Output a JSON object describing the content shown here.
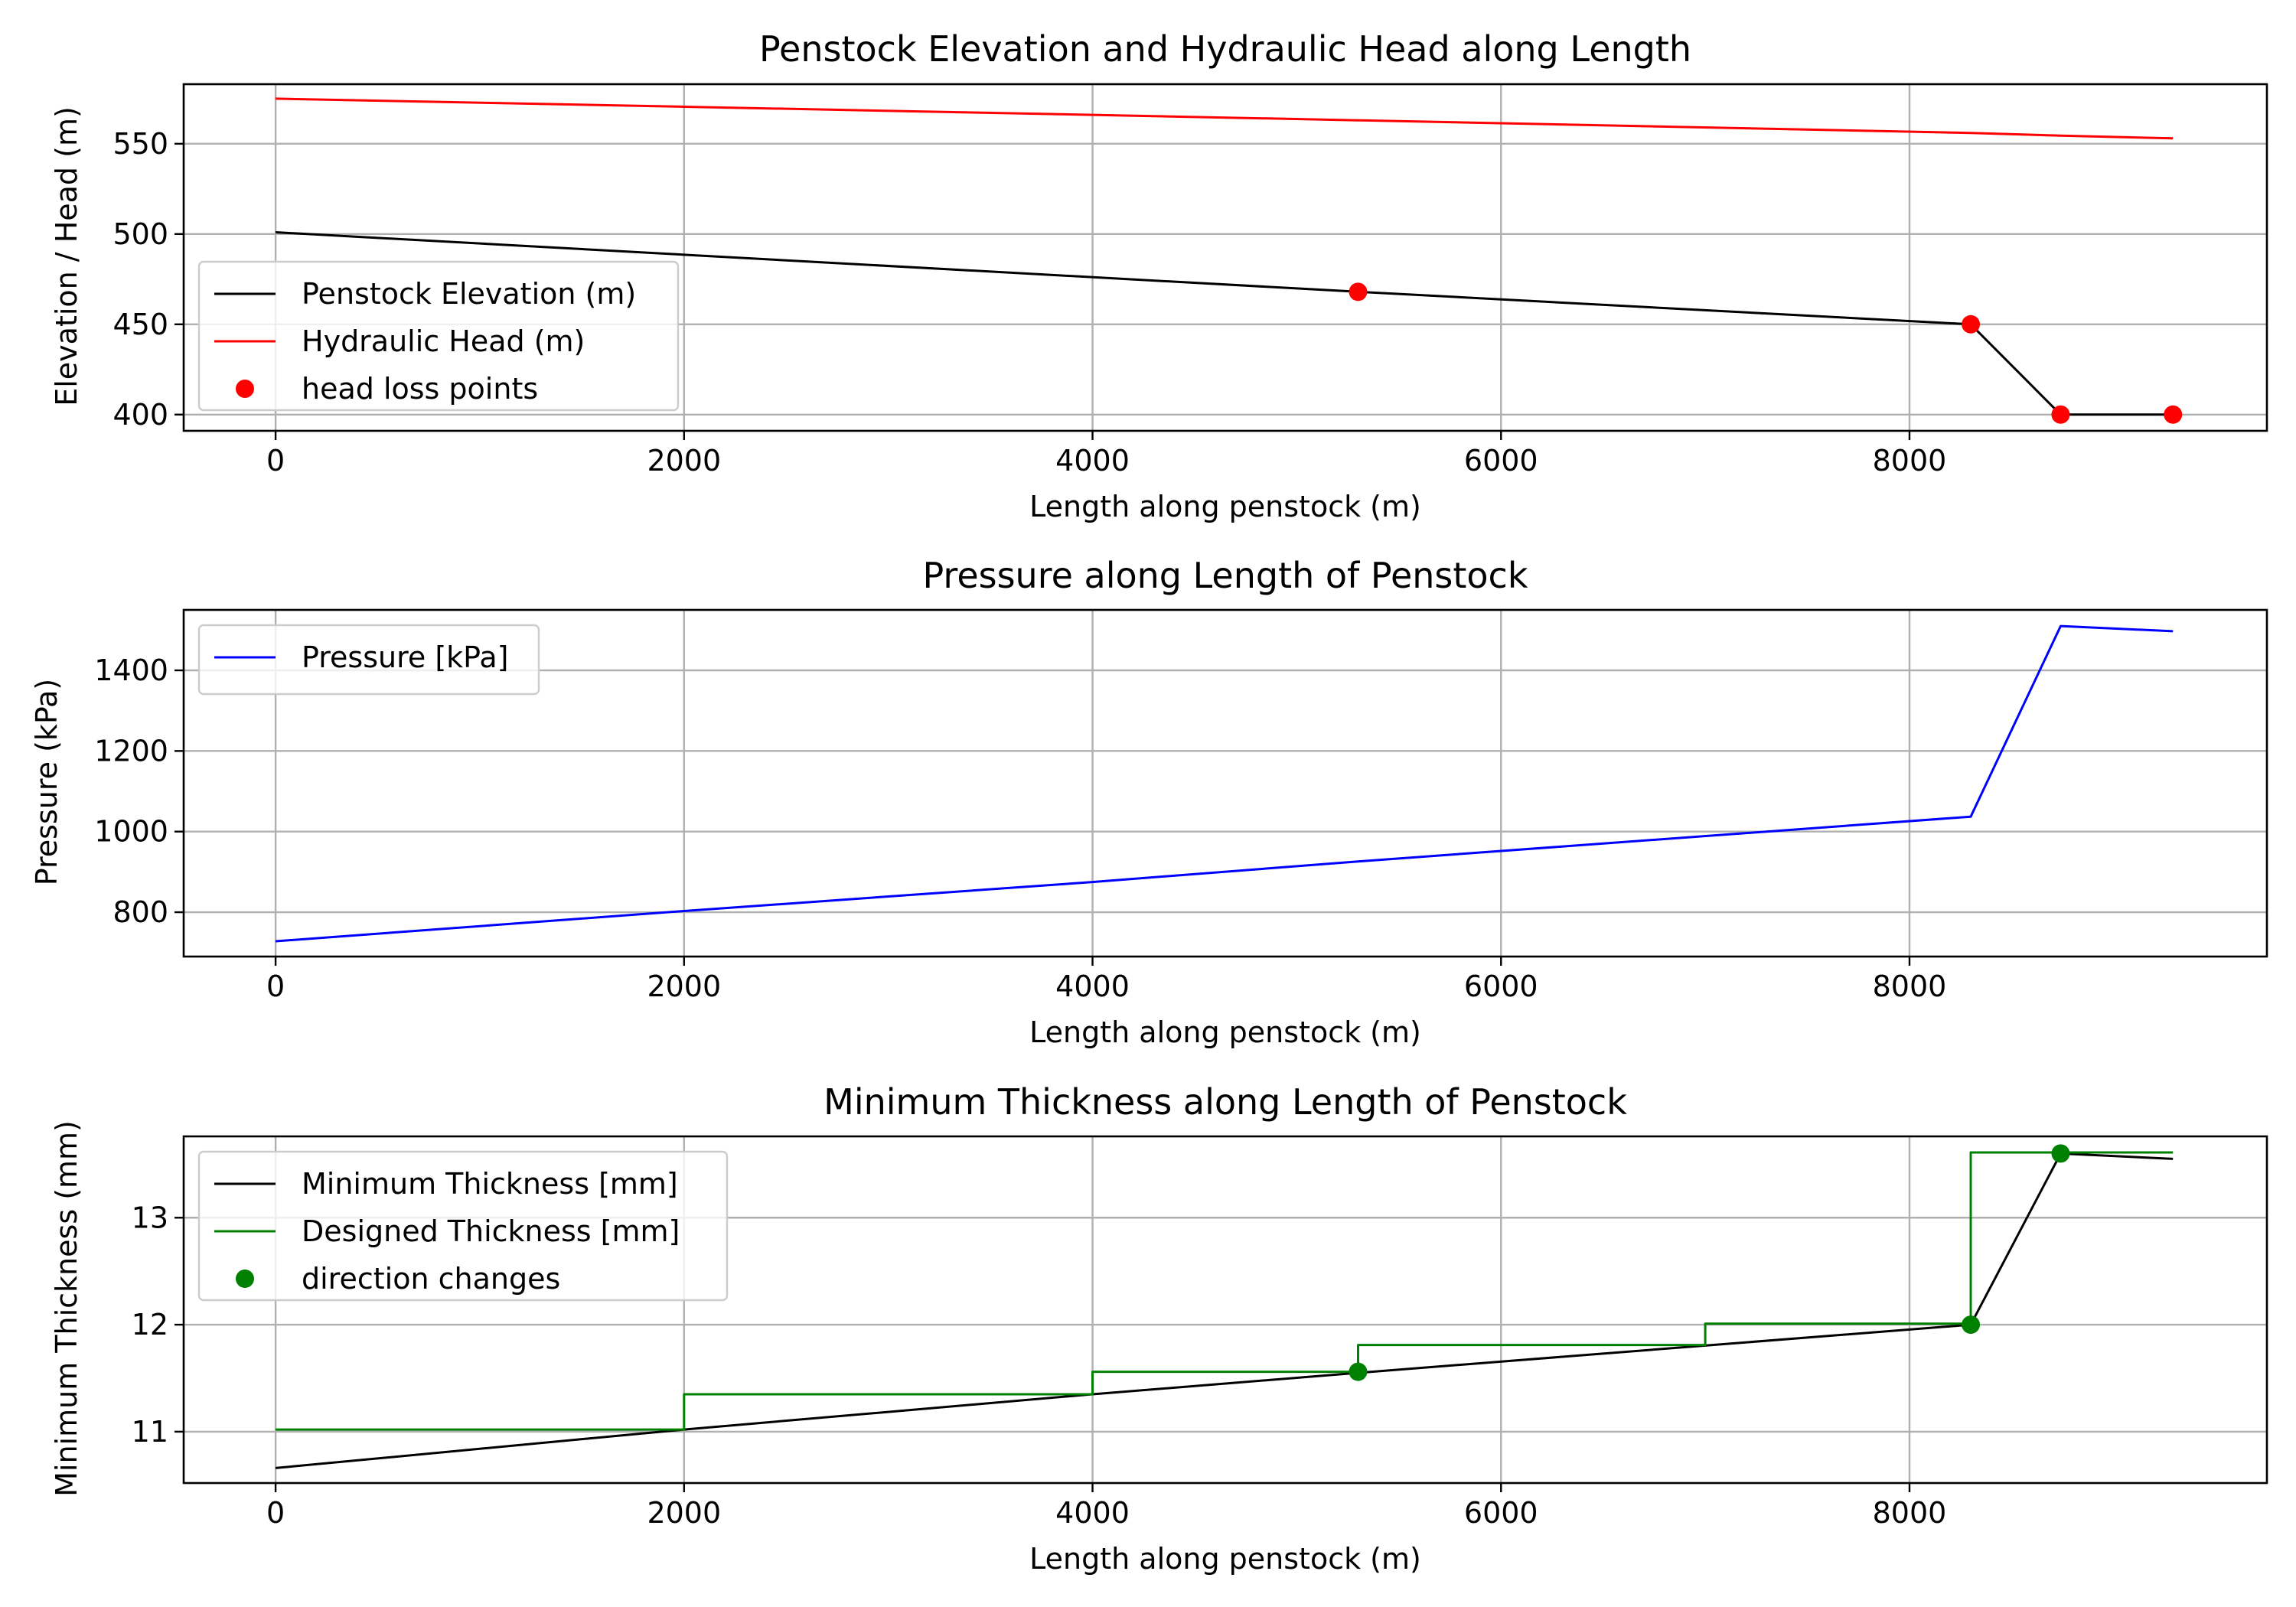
{
  "chart_data": [
    {
      "type": "line",
      "title": "Penstock Elevation and Hydraulic Head along Length",
      "xlabel": "Length along penstock (m)",
      "ylabel": "Elevation / Head (m)",
      "xlim": [
        -450,
        9750
      ],
      "ylim": [
        391,
        583
      ],
      "xticks": [
        0,
        2000,
        4000,
        6000,
        8000
      ],
      "yticks": [
        400,
        450,
        500,
        550
      ],
      "grid": true,
      "legend_position": "lower-left",
      "series": [
        {
          "name": "Penstock Elevation (m)",
          "kind": "line",
          "color": "#000000",
          "x": [
            0,
            5300,
            8300,
            8740,
            9290
          ],
          "y": [
            501,
            468,
            450,
            400,
            400
          ]
        },
        {
          "name": "Hydraulic Head (m)",
          "kind": "line",
          "color": "#ff0000",
          "x": [
            0,
            2000,
            4000,
            5300,
            8300,
            8740,
            9290
          ],
          "y": [
            575,
            570.5,
            566,
            563,
            556,
            554.5,
            553
          ]
        },
        {
          "name": "head loss points",
          "kind": "markers",
          "color": "#ff0000",
          "x": [
            5300,
            8300,
            8740,
            9290
          ],
          "y": [
            468,
            450,
            400,
            400
          ]
        }
      ]
    },
    {
      "type": "line",
      "title": "Pressure along Length of Penstock",
      "xlabel": "Length along penstock (m)",
      "ylabel": "Pressure (kPa)",
      "xlim": [
        -450,
        9750
      ],
      "ylim": [
        690,
        1550
      ],
      "xticks": [
        0,
        2000,
        4000,
        6000,
        8000
      ],
      "yticks": [
        800,
        1000,
        1200,
        1400
      ],
      "grid": true,
      "legend_position": "top-left",
      "series": [
        {
          "name": "Pressure [kPa]",
          "kind": "line",
          "color": "#0000ff",
          "x": [
            0,
            2000,
            4000,
            5300,
            8300,
            8740,
            9290
          ],
          "y": [
            728,
            803,
            875,
            926,
            1037,
            1510,
            1497
          ]
        }
      ]
    },
    {
      "type": "line",
      "title": "Minimum Thickness along Length of Penstock",
      "xlabel": "Length along penstock (m)",
      "ylabel": "Minimum Thickness (mm)",
      "xlim": [
        -450,
        9750
      ],
      "ylim": [
        10.52,
        13.76
      ],
      "xticks": [
        0,
        2000,
        4000,
        6000,
        8000
      ],
      "yticks": [
        11,
        12,
        13
      ],
      "grid": true,
      "legend_position": "top-left",
      "series": [
        {
          "name": "Minimum Thickness [mm]",
          "kind": "line",
          "color": "#000000",
          "x": [
            0,
            2000,
            4000,
            5300,
            8300,
            8740,
            9290
          ],
          "y": [
            10.66,
            11.02,
            11.35,
            11.55,
            12.0,
            13.6,
            13.55
          ]
        },
        {
          "name": "Designed Thickness [mm]",
          "kind": "step",
          "color": "#008000",
          "x": [
            0,
            2000,
            2000,
            4000,
            4000,
            5300,
            5300,
            7000,
            7000,
            8300,
            8300,
            9290
          ],
          "y": [
            11.02,
            11.02,
            11.35,
            11.35,
            11.56,
            11.56,
            11.81,
            11.81,
            12.01,
            12.01,
            13.61,
            13.61
          ]
        },
        {
          "name": "direction changes",
          "kind": "markers",
          "color": "#008000",
          "x": [
            5300,
            8300,
            8740
          ],
          "y": [
            11.56,
            12.0,
            13.6
          ]
        }
      ]
    }
  ]
}
